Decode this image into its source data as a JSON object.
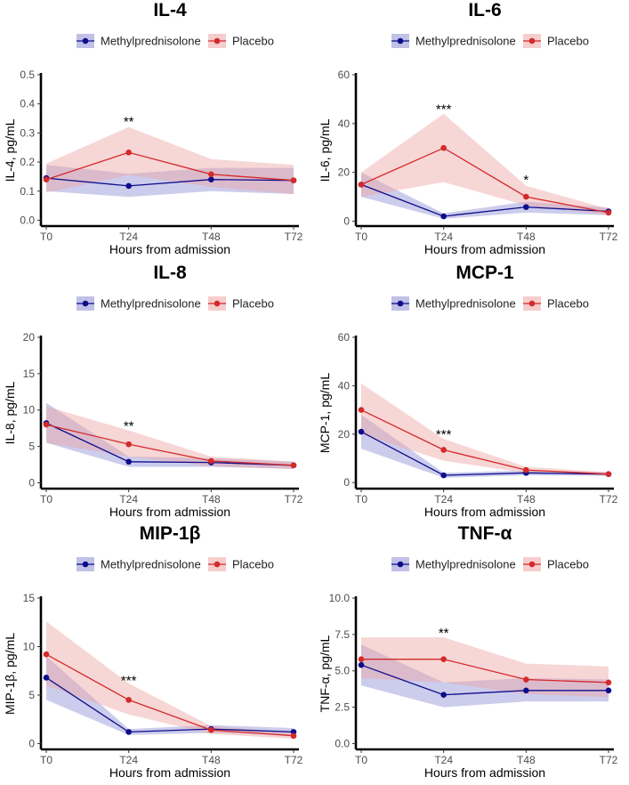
{
  "colors": {
    "methyl": "#0d0d8c",
    "methyl_band": "#8e8ed4",
    "placebo": "#d42a2a",
    "placebo_band": "#eea4a4"
  },
  "chart_data": [
    {
      "type": "line",
      "title": "IL-4",
      "xlabel": "Hours from admission",
      "ylabel": "IL-4, pg/mL",
      "categories": [
        "T0",
        "T24",
        "T48",
        "T72"
      ],
      "ylim": [
        -0.02,
        0.5
      ],
      "yticks": [
        0.0,
        0.1,
        0.2,
        0.3,
        0.4,
        0.5
      ],
      "ytick_labels": [
        "0.0",
        "0.1",
        "0.2",
        "0.3",
        "0.4",
        "0.5"
      ],
      "legend": [
        "Methylprednisolone",
        "Placebo"
      ],
      "series": [
        {
          "name": "Methylprednisolone",
          "values": [
            0.145,
            0.118,
            0.14,
            0.137
          ],
          "lower": [
            0.1,
            0.08,
            0.1,
            0.09
          ],
          "upper": [
            0.19,
            0.16,
            0.18,
            0.18
          ]
        },
        {
          "name": "Placebo",
          "values": [
            0.14,
            0.233,
            0.158,
            0.137
          ],
          "lower": [
            0.095,
            0.155,
            0.115,
            0.09
          ],
          "upper": [
            0.195,
            0.32,
            0.21,
            0.19
          ]
        }
      ],
      "annotations": [
        {
          "x": "T24",
          "y": 0.34,
          "text": "**"
        }
      ]
    },
    {
      "type": "line",
      "title": "IL-6",
      "xlabel": "Hours from admission",
      "ylabel": "IL-6, pg/mL",
      "categories": [
        "T0",
        "T24",
        "T48",
        "T72"
      ],
      "ylim": [
        -2,
        60
      ],
      "yticks": [
        0,
        20,
        40,
        60
      ],
      "ytick_labels": [
        "0",
        "20",
        "40",
        "60"
      ],
      "legend": [
        "Methylprednisolone",
        "Placebo"
      ],
      "series": [
        {
          "name": "Methylprednisolone",
          "values": [
            15,
            2,
            5.8,
            4
          ],
          "lower": [
            10,
            1,
            3.5,
            2.5
          ],
          "upper": [
            20,
            3.2,
            8,
            5.5
          ]
        },
        {
          "name": "Placebo",
          "values": [
            15,
            30,
            10,
            3.5
          ],
          "lower": [
            10,
            16,
            6.5,
            2.5
          ],
          "upper": [
            20,
            44,
            14.5,
            5
          ]
        }
      ],
      "annotations": [
        {
          "x": "T24",
          "y": 46,
          "text": "***"
        },
        {
          "x": "T48",
          "y": 17,
          "text": "*"
        }
      ]
    },
    {
      "type": "line",
      "title": "IL-8",
      "xlabel": "Hours from admission",
      "ylabel": "IL-8, pg/mL",
      "categories": [
        "T0",
        "T24",
        "T48",
        "T72"
      ],
      "ylim": [
        -0.8,
        20
      ],
      "yticks": [
        0,
        5,
        10,
        15,
        20
      ],
      "ytick_labels": [
        "0",
        "5",
        "10",
        "15",
        "20"
      ],
      "legend": [
        "Methylprednisolone",
        "Placebo"
      ],
      "series": [
        {
          "name": "Methylprednisolone",
          "values": [
            8.2,
            2.9,
            2.8,
            2.4
          ],
          "lower": [
            5.5,
            2.2,
            2.2,
            1.9
          ],
          "upper": [
            11,
            3.6,
            3.4,
            2.9
          ]
        },
        {
          "name": "Placebo",
          "values": [
            8,
            5.3,
            3,
            2.4
          ],
          "lower": [
            5.5,
            3.6,
            2.3,
            1.9
          ],
          "upper": [
            10.5,
            7.2,
            3.6,
            2.9
          ]
        }
      ],
      "annotations": [
        {
          "x": "T24",
          "y": 7.8,
          "text": "**"
        }
      ]
    },
    {
      "type": "line",
      "title": "MCP-1",
      "xlabel": "Hours from admission",
      "ylabel": "MCP-1, pg/mL",
      "categories": [
        "T0",
        "T24",
        "T48",
        "T72"
      ],
      "ylim": [
        -2.5,
        60
      ],
      "yticks": [
        0,
        20,
        40,
        60
      ],
      "ytick_labels": [
        "0",
        "20",
        "40",
        "60"
      ],
      "legend": [
        "Methylprednisolone",
        "Placebo"
      ],
      "series": [
        {
          "name": "Methylprednisolone",
          "values": [
            21,
            3,
            4,
            3.5
          ],
          "lower": [
            14,
            2,
            3,
            2.8
          ],
          "upper": [
            28,
            4,
            5,
            4.3
          ]
        },
        {
          "name": "Placebo",
          "values": [
            30,
            13.5,
            5.2,
            3.5
          ],
          "lower": [
            20,
            9,
            4,
            2.8
          ],
          "upper": [
            41,
            18,
            6.5,
            4.3
          ]
        }
      ],
      "annotations": [
        {
          "x": "T24",
          "y": 20,
          "text": "***"
        }
      ]
    },
    {
      "type": "line",
      "title": "MIP-1β",
      "xlabel": "Hours from admission",
      "ylabel": "MIP-1β, pg/mL",
      "categories": [
        "T0",
        "T24",
        "T48",
        "T72"
      ],
      "ylim": [
        -0.6,
        15
      ],
      "yticks": [
        0,
        5,
        10,
        15
      ],
      "ytick_labels": [
        "0",
        "5",
        "10",
        "15"
      ],
      "legend": [
        "Methylprednisolone",
        "Placebo"
      ],
      "series": [
        {
          "name": "Methylprednisolone",
          "values": [
            6.8,
            1.2,
            1.5,
            1.2
          ],
          "lower": [
            4.5,
            0.9,
            1.1,
            0.9
          ],
          "upper": [
            9,
            1.5,
            1.9,
            1.6
          ]
        },
        {
          "name": "Placebo",
          "values": [
            9.2,
            4.5,
            1.4,
            0.8
          ],
          "lower": [
            6,
            3,
            1,
            0.5
          ],
          "upper": [
            12.6,
            6.2,
            1.8,
            1.1
          ]
        }
      ],
      "annotations": [
        {
          "x": "T24",
          "y": 6.5,
          "text": "***"
        }
      ]
    },
    {
      "type": "line",
      "title": "TNF-α",
      "xlabel": "Hours from admission",
      "ylabel": "TNF-α, pg/mL",
      "categories": [
        "T0",
        "T24",
        "T48",
        "T72"
      ],
      "ylim": [
        -0.4,
        10
      ],
      "yticks": [
        0,
        2.5,
        5,
        7.5,
        10
      ],
      "ytick_labels": [
        "0.0",
        "2.5",
        "5.0",
        "7.5",
        "10.0"
      ],
      "legend": [
        "Methylprednisolone",
        "Placebo"
      ],
      "series": [
        {
          "name": "Methylprednisolone",
          "values": [
            5.4,
            3.35,
            3.65,
            3.65
          ],
          "lower": [
            4,
            2.5,
            2.9,
            2.9
          ],
          "upper": [
            6.8,
            4.2,
            4.5,
            4.4
          ]
        },
        {
          "name": "Placebo",
          "values": [
            5.8,
            5.8,
            4.4,
            4.2
          ],
          "lower": [
            4.5,
            4.2,
            3.4,
            3.2
          ],
          "upper": [
            7.3,
            7.3,
            5.5,
            5.3
          ]
        }
      ],
      "annotations": [
        {
          "x": "T24",
          "y": 7.6,
          "text": "**"
        }
      ]
    }
  ]
}
